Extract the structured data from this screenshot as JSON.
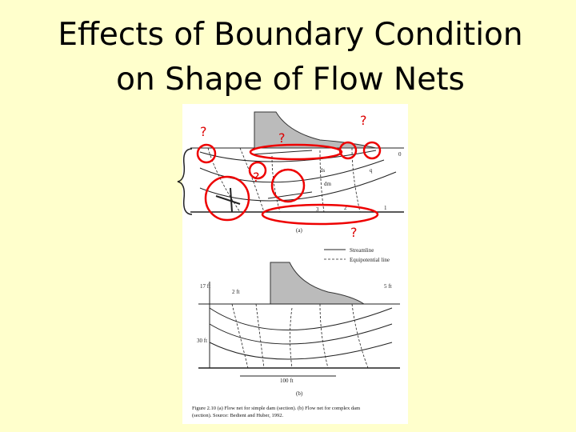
{
  "title": {
    "lines": [
      "Effects of Boundary Condition",
      "on Shape of Flow Nets"
    ]
  },
  "annotations": {
    "question_marks": [
      "?",
      "?",
      "?",
      "?",
      "?"
    ]
  },
  "figure": {
    "panel_a": {
      "labels": [
        "0",
        "q",
        "ds",
        "dm",
        "1",
        "2",
        "3"
      ],
      "tag": "(a)"
    },
    "legend": [
      "Streamline",
      "Equipotential line"
    ],
    "panel_b": {
      "labels": [
        "17 ft",
        "2 ft",
        "5 ft",
        "30 ft",
        "100 ft"
      ],
      "tag": "(b)"
    },
    "caption": [
      "Figure 2.10   (a) Flow net for simple dam (section). (b) Flow net for complex dam",
      "(section).   Source: Bedient and Huber, 1992."
    ]
  }
}
